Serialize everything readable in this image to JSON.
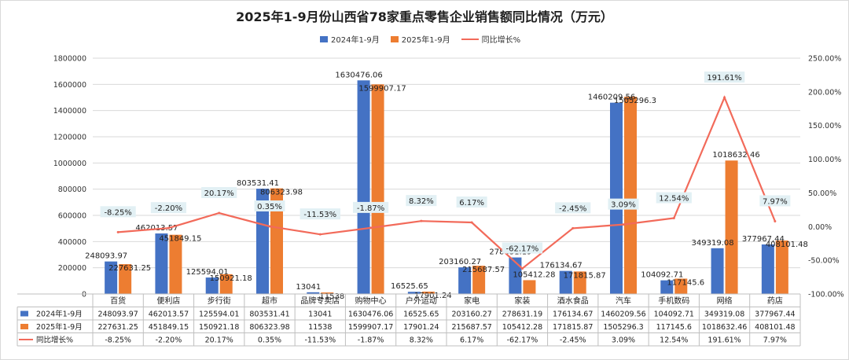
{
  "title": "2025年1-9月份山西省78家重点零售企业销售额同比情况（万元）",
  "colors": {
    "s2024": "#4472c4",
    "s2025": "#ed7d31",
    "growth": "#f26a5a",
    "grid": "#d9d9d9",
    "growth_label_bg": "#e2f0f4"
  },
  "chart_data": {
    "type": "bar",
    "title": "2025年1-9月份山西省78家重点零售企业销售额同比情况（万元）",
    "categories": [
      "百货",
      "便利店",
      "步行街",
      "超市",
      "品牌专卖店",
      "购物中心",
      "户外运动",
      "家电",
      "家装",
      "酒水食品",
      "汽车",
      "手机数码",
      "网络",
      "药店"
    ],
    "series": [
      {
        "name": "2024年1-9月",
        "type": "bar",
        "axis": "left",
        "values": [
          248093.97,
          462013.57,
          125594.01,
          803531.41,
          13041,
          1630476.06,
          16525.65,
          203160.27,
          278631.19,
          176134.67,
          1460209.56,
          104092.71,
          349319.08,
          377967.44
        ],
        "labels": [
          "248093.97",
          "462013.57",
          "125594.01",
          "803531.41",
          "13041",
          "1630476.06",
          "16525.65",
          "203160.27",
          "278631.19",
          "176134.67",
          "1460209.56",
          "104092.71",
          "349319.08",
          "377967.44"
        ]
      },
      {
        "name": "2025年1-9月",
        "type": "bar",
        "axis": "left",
        "values": [
          227631.25,
          451849.15,
          150921.18,
          806323.98,
          11538,
          1599907.17,
          17901.24,
          215687.57,
          105412.28,
          171815.87,
          1505296.3,
          117145.6,
          1018632.46,
          408101.48
        ],
        "labels": [
          "227631.25",
          "451849.15",
          "150921.18",
          "806323.98",
          "11538",
          "1599907.17",
          "17901.24",
          "215687.57",
          "105412.28",
          "171815.87",
          "1505296.3",
          "117145.6",
          "1018632.46",
          "408101.48"
        ]
      },
      {
        "name": "同比增长%",
        "type": "line",
        "axis": "right",
        "values": [
          -8.25,
          -2.2,
          20.17,
          0.35,
          -11.53,
          -1.87,
          8.32,
          6.17,
          -62.17,
          -2.45,
          3.09,
          12.54,
          191.61,
          7.97
        ],
        "labels": [
          "-8.25%",
          "-2.20%",
          "20.17%",
          "0.35%",
          "-11.53%",
          "-1.87%",
          "8.32%",
          "6.17%",
          "-62.17%",
          "-2.45%",
          "3.09%",
          "12.54%",
          "191.61%",
          "7.97%"
        ]
      }
    ],
    "ylim": [
      0,
      1800000
    ],
    "y_ticks": [
      "0",
      "200000",
      "400000",
      "600000",
      "800000",
      "1000000",
      "1200000",
      "1400000",
      "1600000",
      "1800000"
    ],
    "y2lim": [
      -100,
      250
    ],
    "y2_ticks": [
      "-100.00%",
      "-50.00%",
      "0.00%",
      "50.00%",
      "100.00%",
      "150.00%",
      "200.00%",
      "250.00%"
    ],
    "legend": "top-center",
    "grid": true,
    "table": {
      "row_labels": [
        "2024年1-9月",
        "2025年1-9月",
        "同比增长%"
      ],
      "rows": [
        [
          "248093.97",
          "462013.57",
          "125594.01",
          "803531.41",
          "13041",
          "1630476.06",
          "16525.65",
          "203160.27",
          "278631.19",
          "176134.67",
          "1460209.56",
          "104092.71",
          "349319.08",
          "377967.44"
        ],
        [
          "227631.25",
          "451849.15",
          "150921.18",
          "806323.98",
          "11538",
          "1599907.17",
          "17901.24",
          "215687.57",
          "105412.28",
          "171815.87",
          "1505296.3",
          "117145.6",
          "1018632.46",
          "408101.48"
        ],
        [
          "-8.25%",
          "-2.20%",
          "20.17%",
          "0.35%",
          "-11.53%",
          "-1.87%",
          "8.32%",
          "6.17%",
          "-62.17%",
          "-2.45%",
          "3.09%",
          "12.54%",
          "191.61%",
          "7.97%"
        ]
      ]
    }
  }
}
